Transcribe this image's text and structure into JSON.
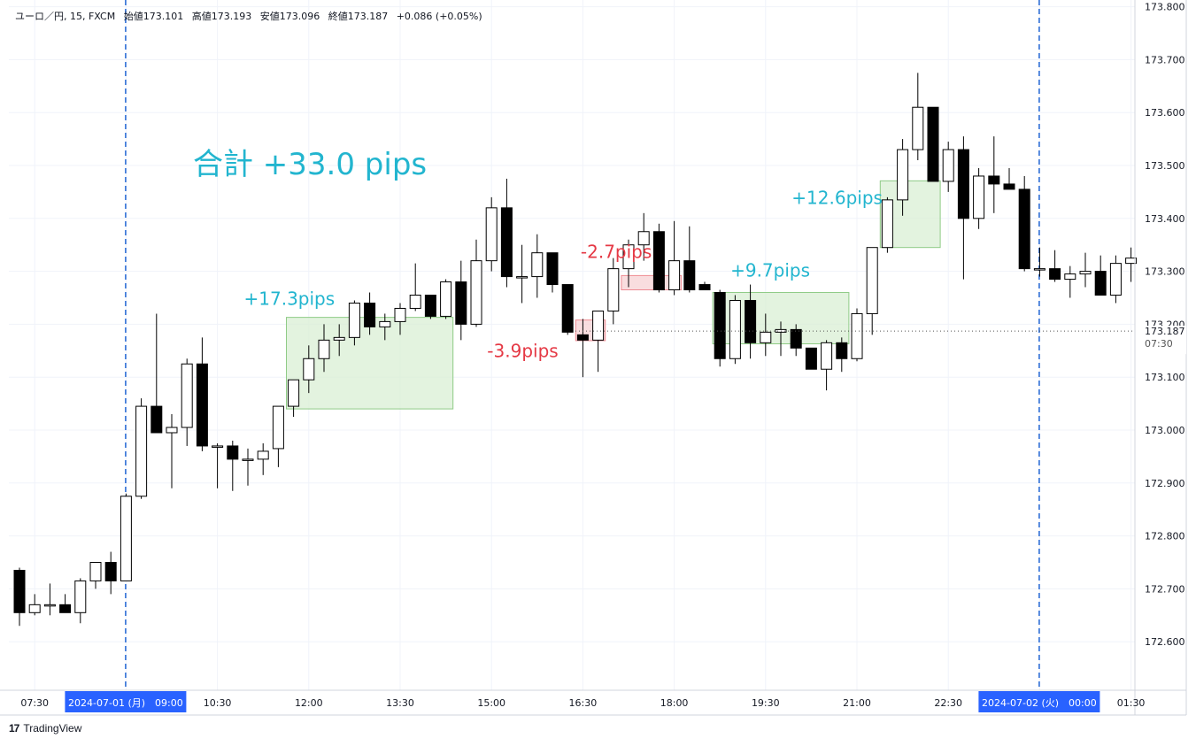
{
  "header": {
    "symbol": "ユーロ／円, 15, FXCM",
    "open": "始値173.101",
    "high": "高値173.193",
    "low": "安値173.096",
    "close": "終値173.187",
    "change": "+0.086 (+0.05%)"
  },
  "total_label": "合計 +33.0 pips",
  "brand": {
    "logo": "17",
    "name": "TradingView"
  },
  "colors": {
    "up_candle": "#ffffff",
    "down_candle": "#000000",
    "win_box": "#d9efd4",
    "loss_box": "#f7d2d4",
    "win_text": "#22b5cf",
    "loss_text": "#e53945",
    "session_line": "#2f6fd6",
    "badge": "#2962ff"
  },
  "chart_data": {
    "type": "candlestick",
    "timeframe": "15",
    "y_ticks": [
      "173.800",
      "173.700",
      "173.600",
      "173.500",
      "173.400",
      "173.300",
      "173.200",
      "173.100",
      "173.000",
      "172.900",
      "172.800",
      "172.700",
      "172.600"
    ],
    "ylim": [
      172.48,
      173.81
    ],
    "x_ticks": [
      "07:30",
      "2024-07-01 (月)　09:00",
      "10:30",
      "12:00",
      "13:30",
      "15:00",
      "16:30",
      "18:00",
      "19:30",
      "21:00",
      "22:30",
      "2024-07-02 (火)　00:00",
      "01:30"
    ],
    "last_price": "173.187",
    "last_price_time": "07:30",
    "session_breaks": [
      "2024-07-01 09:00",
      "2024-07-02 00:00"
    ],
    "candles": [
      {
        "t": "07:15",
        "o": 172.735,
        "h": 172.74,
        "l": 172.63,
        "c": 172.655
      },
      {
        "t": "07:30",
        "o": 172.655,
        "h": 172.69,
        "l": 172.65,
        "c": 172.67
      },
      {
        "t": "07:45",
        "o": 172.668,
        "h": 172.71,
        "l": 172.65,
        "c": 172.67
      },
      {
        "t": "08:00",
        "o": 172.67,
        "h": 172.69,
        "l": 172.655,
        "c": 172.655
      },
      {
        "t": "08:15",
        "o": 172.655,
        "h": 172.72,
        "l": 172.635,
        "c": 172.715
      },
      {
        "t": "08:30",
        "o": 172.715,
        "h": 172.75,
        "l": 172.7,
        "c": 172.75
      },
      {
        "t": "08:45",
        "o": 172.75,
        "h": 172.77,
        "l": 172.69,
        "c": 172.715
      },
      {
        "t": "09:00",
        "o": 172.715,
        "h": 172.88,
        "l": 172.715,
        "c": 172.875
      },
      {
        "t": "09:15",
        "o": 172.875,
        "h": 173.06,
        "l": 172.87,
        "c": 173.045
      },
      {
        "t": "09:30",
        "o": 173.045,
        "h": 173.22,
        "l": 172.995,
        "c": 172.995
      },
      {
        "t": "09:45",
        "o": 172.995,
        "h": 173.03,
        "l": 172.89,
        "c": 173.005
      },
      {
        "t": "10:00",
        "o": 173.005,
        "h": 173.135,
        "l": 172.97,
        "c": 173.125
      },
      {
        "t": "10:15",
        "o": 173.125,
        "h": 173.175,
        "l": 172.96,
        "c": 172.97
      },
      {
        "t": "10:30",
        "o": 172.97,
        "h": 172.975,
        "l": 172.89,
        "c": 172.97
      },
      {
        "t": "10:45",
        "o": 172.97,
        "h": 172.98,
        "l": 172.885,
        "c": 172.945
      },
      {
        "t": "11:00",
        "o": 172.945,
        "h": 172.965,
        "l": 172.895,
        "c": 172.945
      },
      {
        "t": "11:15",
        "o": 172.945,
        "h": 172.975,
        "l": 172.915,
        "c": 172.96
      },
      {
        "t": "11:30",
        "o": 172.965,
        "h": 173.045,
        "l": 172.93,
        "c": 173.045
      },
      {
        "t": "11:45",
        "o": 173.045,
        "h": 173.095,
        "l": 173.025,
        "c": 173.095
      },
      {
        "t": "12:00",
        "o": 173.095,
        "h": 173.16,
        "l": 173.07,
        "c": 173.135
      },
      {
        "t": "12:15",
        "o": 173.135,
        "h": 173.2,
        "l": 173.11,
        "c": 173.17
      },
      {
        "t": "12:30",
        "o": 173.17,
        "h": 173.2,
        "l": 173.14,
        "c": 173.175
      },
      {
        "t": "12:45",
        "o": 173.175,
        "h": 173.245,
        "l": 173.16,
        "c": 173.24
      },
      {
        "t": "13:00",
        "o": 173.24,
        "h": 173.26,
        "l": 173.18,
        "c": 173.195
      },
      {
        "t": "13:15",
        "o": 173.195,
        "h": 173.22,
        "l": 173.17,
        "c": 173.205
      },
      {
        "t": "13:30",
        "o": 173.205,
        "h": 173.24,
        "l": 173.18,
        "c": 173.23
      },
      {
        "t": "13:45",
        "o": 173.23,
        "h": 173.315,
        "l": 173.225,
        "c": 173.255
      },
      {
        "t": "14:00",
        "o": 173.255,
        "h": 173.255,
        "l": 173.21,
        "c": 173.215
      },
      {
        "t": "14:15",
        "o": 173.215,
        "h": 173.285,
        "l": 173.21,
        "c": 173.28
      },
      {
        "t": "14:30",
        "o": 173.28,
        "h": 173.32,
        "l": 173.17,
        "c": 173.2
      },
      {
        "t": "14:45",
        "o": 173.2,
        "h": 173.36,
        "l": 173.195,
        "c": 173.32
      },
      {
        "t": "15:00",
        "o": 173.32,
        "h": 173.44,
        "l": 173.3,
        "c": 173.42
      },
      {
        "t": "15:15",
        "o": 173.42,
        "h": 173.475,
        "l": 173.27,
        "c": 173.29
      },
      {
        "t": "15:30",
        "o": 173.29,
        "h": 173.35,
        "l": 173.24,
        "c": 173.29
      },
      {
        "t": "15:45",
        "o": 173.29,
        "h": 173.37,
        "l": 173.25,
        "c": 173.335
      },
      {
        "t": "16:00",
        "o": 173.335,
        "h": 173.335,
        "l": 173.26,
        "c": 173.275
      },
      {
        "t": "16:15",
        "o": 173.275,
        "h": 173.275,
        "l": 173.18,
        "c": 173.185
      },
      {
        "t": "16:30",
        "o": 173.18,
        "h": 173.21,
        "l": 173.1,
        "c": 173.17
      },
      {
        "t": "16:45",
        "o": 173.17,
        "h": 173.225,
        "l": 173.11,
        "c": 173.225
      },
      {
        "t": "17:00",
        "o": 173.225,
        "h": 173.325,
        "l": 173.2,
        "c": 173.305
      },
      {
        "t": "17:15",
        "o": 173.305,
        "h": 173.36,
        "l": 173.27,
        "c": 173.35
      },
      {
        "t": "17:30",
        "o": 173.35,
        "h": 173.41,
        "l": 173.32,
        "c": 173.375
      },
      {
        "t": "17:45",
        "o": 173.375,
        "h": 173.39,
        "l": 173.26,
        "c": 173.265
      },
      {
        "t": "18:00",
        "o": 173.265,
        "h": 173.395,
        "l": 173.255,
        "c": 173.32
      },
      {
        "t": "18:15",
        "o": 173.32,
        "h": 173.385,
        "l": 173.26,
        "c": 173.265
      },
      {
        "t": "18:30",
        "o": 173.275,
        "h": 173.28,
        "l": 173.265,
        "c": 173.265
      },
      {
        "t": "18:45",
        "o": 173.26,
        "h": 173.265,
        "l": 173.12,
        "c": 173.135
      },
      {
        "t": "19:00",
        "o": 173.135,
        "h": 173.255,
        "l": 173.125,
        "c": 173.245
      },
      {
        "t": "19:15",
        "o": 173.245,
        "h": 173.275,
        "l": 173.135,
        "c": 173.165
      },
      {
        "t": "19:30",
        "o": 173.165,
        "h": 173.22,
        "l": 173.14,
        "c": 173.185
      },
      {
        "t": "19:45",
        "o": 173.185,
        "h": 173.205,
        "l": 173.14,
        "c": 173.19
      },
      {
        "t": "20:00",
        "o": 173.19,
        "h": 173.2,
        "l": 173.14,
        "c": 173.155
      },
      {
        "t": "20:15",
        "o": 173.155,
        "h": 173.155,
        "l": 173.115,
        "c": 173.115
      },
      {
        "t": "20:30",
        "o": 173.115,
        "h": 173.17,
        "l": 173.075,
        "c": 173.165
      },
      {
        "t": "20:45",
        "o": 173.165,
        "h": 173.175,
        "l": 173.11,
        "c": 173.135
      },
      {
        "t": "21:00",
        "o": 173.135,
        "h": 173.23,
        "l": 173.13,
        "c": 173.22
      },
      {
        "t": "21:15",
        "o": 173.22,
        "h": 173.345,
        "l": 173.18,
        "c": 173.345
      },
      {
        "t": "21:30",
        "o": 173.345,
        "h": 173.44,
        "l": 173.335,
        "c": 173.435
      },
      {
        "t": "21:45",
        "o": 173.435,
        "h": 173.55,
        "l": 173.405,
        "c": 173.53
      },
      {
        "t": "22:00",
        "o": 173.53,
        "h": 173.675,
        "l": 173.51,
        "c": 173.61
      },
      {
        "t": "22:15",
        "o": 173.61,
        "h": 173.61,
        "l": 173.47,
        "c": 173.47
      },
      {
        "t": "22:30",
        "o": 173.47,
        "h": 173.545,
        "l": 173.45,
        "c": 173.53
      },
      {
        "t": "22:45",
        "o": 173.53,
        "h": 173.555,
        "l": 173.285,
        "c": 173.4
      },
      {
        "t": "23:00",
        "o": 173.4,
        "h": 173.495,
        "l": 173.38,
        "c": 173.48
      },
      {
        "t": "23:15",
        "o": 173.48,
        "h": 173.555,
        "l": 173.41,
        "c": 173.465
      },
      {
        "t": "23:30",
        "o": 173.465,
        "h": 173.495,
        "l": 173.455,
        "c": 173.455
      },
      {
        "t": "23:45",
        "o": 173.455,
        "h": 173.48,
        "l": 173.3,
        "c": 173.305
      },
      {
        "t": "00:00",
        "o": 173.305,
        "h": 173.345,
        "l": 173.29,
        "c": 173.305
      },
      {
        "t": "00:15",
        "o": 173.305,
        "h": 173.34,
        "l": 173.28,
        "c": 173.285
      },
      {
        "t": "00:30",
        "o": 173.285,
        "h": 173.31,
        "l": 173.25,
        "c": 173.295
      },
      {
        "t": "00:45",
        "o": 173.295,
        "h": 173.335,
        "l": 173.27,
        "c": 173.3
      },
      {
        "t": "01:00",
        "o": 173.3,
        "h": 173.33,
        "l": 173.255,
        "c": 173.255
      },
      {
        "t": "01:15",
        "o": 173.255,
        "h": 173.33,
        "l": 173.24,
        "c": 173.315
      },
      {
        "t": "01:30",
        "o": 173.315,
        "h": 173.345,
        "l": 173.28,
        "c": 173.325
      }
    ],
    "trades": [
      {
        "label": "+17.3pips",
        "result": "win",
        "from": "11:45",
        "to": "14:15",
        "low": 173.04,
        "high": 173.213
      },
      {
        "label": "-3.9pips",
        "result": "loss",
        "from": "16:30",
        "to": "16:45",
        "low": 173.169,
        "high": 173.208
      },
      {
        "label": "-2.7pips",
        "result": "loss",
        "from": "17:15",
        "to": "18:00",
        "low": 173.265,
        "high": 173.292
      },
      {
        "label": "+9.7pips",
        "result": "win",
        "from": "18:45",
        "to": "20:45",
        "low": 173.163,
        "high": 173.26
      },
      {
        "label": "+12.6pips",
        "result": "win",
        "from": "21:30",
        "to": "22:15",
        "low": 173.345,
        "high": 173.471
      }
    ]
  }
}
